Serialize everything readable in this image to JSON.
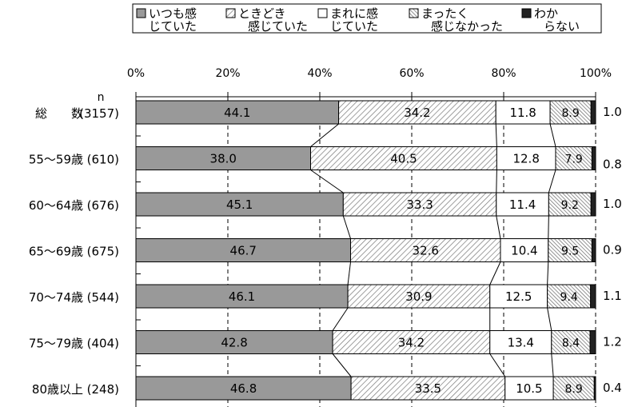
{
  "chart_data": {
    "type": "bar",
    "stacked": true,
    "orientation": "horizontal",
    "n_label": "n",
    "x_ticks": [
      "0%",
      "20%",
      "40%",
      "60%",
      "80%",
      "100%"
    ],
    "xlim": [
      0,
      100
    ],
    "grid": "dashed vertical",
    "legend_position": "top",
    "categories": [
      {
        "name": "総　　数",
        "n": "(3157)"
      },
      {
        "name": "55～59歳",
        "n": "(610)"
      },
      {
        "name": "60～64歳",
        "n": "(676)"
      },
      {
        "name": "65～69歳",
        "n": "(675)"
      },
      {
        "name": "70～74歳",
        "n": "(544)"
      },
      {
        "name": "75～79歳",
        "n": "(404)"
      },
      {
        "name": "80歳以上",
        "n": "(248)"
      }
    ],
    "series": [
      {
        "name": "いつも感じていた",
        "legend_lines": [
          "いつも感",
          "じていた"
        ],
        "color": "#999999",
        "pattern": "solid",
        "values": [
          44.1,
          38.0,
          45.1,
          46.7,
          46.1,
          42.8,
          46.8
        ],
        "labels": [
          "44.1",
          "38.0",
          "45.1",
          "46.7",
          "46.1",
          "42.8",
          "46.8"
        ]
      },
      {
        "name": "ときどき感じていた",
        "legend_lines": [
          "ときどき",
          "感じていた"
        ],
        "color": "#ffffff",
        "pattern": "diagonal",
        "values": [
          34.2,
          40.5,
          33.3,
          32.6,
          30.9,
          34.2,
          33.5
        ],
        "labels": [
          "34.2",
          "40.5",
          "33.3",
          "32.6",
          "30.9",
          "34.2",
          "33.5"
        ]
      },
      {
        "name": "まれに感じていた",
        "legend_lines": [
          "まれに感",
          "じていた"
        ],
        "color": "#ffffff",
        "pattern": "white",
        "values": [
          11.8,
          12.8,
          11.4,
          10.4,
          12.5,
          13.4,
          10.5
        ],
        "labels": [
          "11.8",
          "12.8",
          "11.4",
          "10.4",
          "12.5",
          "13.4",
          "10.5"
        ]
      },
      {
        "name": "まったく感じなかった",
        "legend_lines": [
          "まったく",
          "感じなかった"
        ],
        "color": "#bbbbbb",
        "pattern": "dense-diagonal",
        "values": [
          8.9,
          7.9,
          9.2,
          9.5,
          9.4,
          8.4,
          8.9
        ],
        "labels": [
          "8.9",
          "7.9",
          "9.2",
          "9.5",
          "9.4",
          "8.4",
          "8.9"
        ]
      },
      {
        "name": "わからない",
        "legend_lines": [
          "わか",
          "らない"
        ],
        "color": "#222222",
        "pattern": "solid",
        "values": [
          1.0,
          0.8,
          1.0,
          0.9,
          1.1,
          1.2,
          0.4
        ],
        "labels": [
          "1.0",
          "0.8",
          "1.0",
          "0.9",
          "1.1",
          "1.2",
          "0.4"
        ]
      }
    ]
  }
}
